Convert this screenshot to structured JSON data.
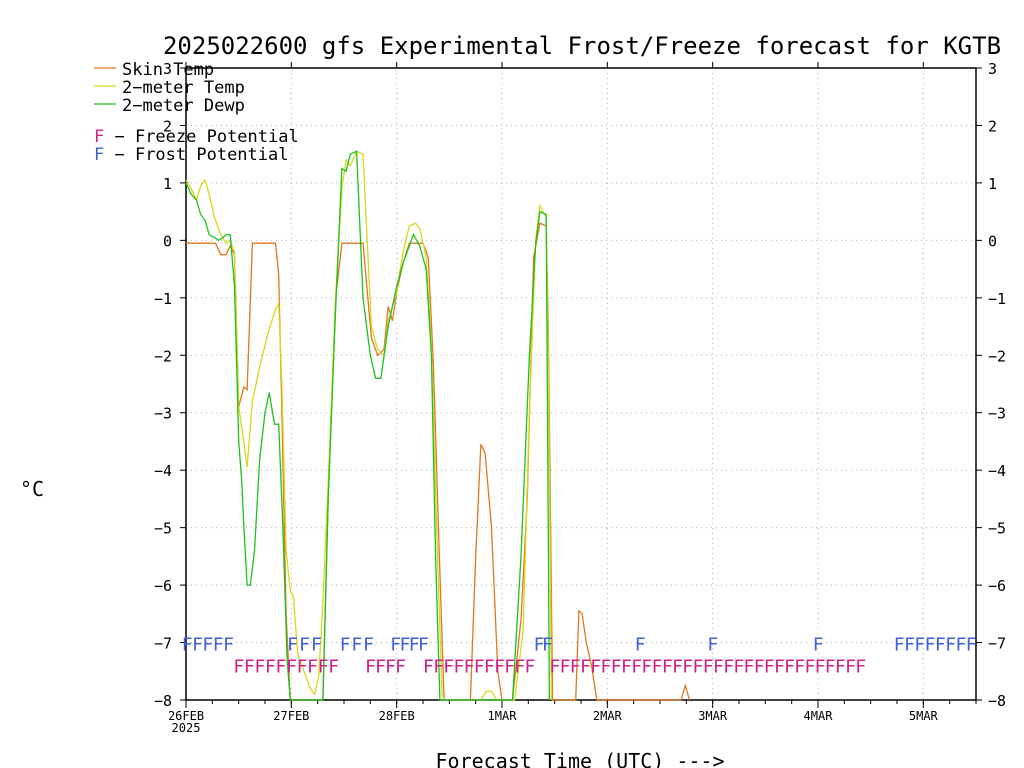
{
  "chart_data": {
    "type": "line",
    "title": "2025022600 gfs Experimental Frost/Freeze forecast for KGTB",
    "xlabel": "Forecast Time (UTC) --->",
    "ylabel": "°C",
    "ylim": [
      -8,
      3
    ],
    "yticks": [
      3,
      2,
      1,
      0,
      -1,
      -2,
      -3,
      -4,
      -5,
      -6,
      -7,
      -8
    ],
    "ytick_labels": [
      "3",
      "2",
      "1",
      "0",
      "−1",
      "−2",
      "−3",
      "−4",
      "−5",
      "−6",
      "−7",
      "−8"
    ],
    "xlim_days": [
      26,
      33.5
    ],
    "xtick_labels": [
      "26FEB",
      "27FEB",
      "28FEB",
      "1MAR",
      "2MAR",
      "3MAR",
      "4MAR",
      "5MAR"
    ],
    "x_year_label": "2025",
    "grid": true,
    "legend_position": "top-left",
    "legend": [
      {
        "label": "Skin Temp",
        "color": "#e07820"
      },
      {
        "label": "2−meter Temp",
        "color": "#d8d818"
      },
      {
        "label": "2−meter Dewp",
        "color": "#20c020"
      }
    ],
    "markers_legend": [
      {
        "label": "F − Freeze Potential",
        "letter": "F",
        "color": "#d0208a"
      },
      {
        "label": "F − Frost Potential",
        "letter": "F",
        "color": "#4060d8"
      }
    ],
    "series": [
      {
        "name": "Skin Temp",
        "color": "#e07820",
        "points": [
          [
            26.0,
            -0.05
          ],
          [
            26.1,
            -0.05
          ],
          [
            26.2,
            -0.05
          ],
          [
            26.28,
            -0.05
          ],
          [
            26.33,
            -0.25
          ],
          [
            26.38,
            -0.25
          ],
          [
            26.42,
            -0.1
          ],
          [
            26.46,
            -0.25
          ],
          [
            26.5,
            -2.9
          ],
          [
            26.55,
            -2.55
          ],
          [
            26.58,
            -2.6
          ],
          [
            26.63,
            -0.05
          ],
          [
            26.7,
            -0.05
          ],
          [
            26.8,
            -0.05
          ],
          [
            26.85,
            -0.05
          ],
          [
            26.88,
            -0.6
          ],
          [
            26.91,
            -3.0
          ],
          [
            26.95,
            -6.5
          ],
          [
            26.99,
            -8.0
          ],
          [
            27.3,
            -8.0
          ],
          [
            27.35,
            -4.5
          ],
          [
            27.42,
            -1.0
          ],
          [
            27.48,
            -0.05
          ],
          [
            27.55,
            -0.05
          ],
          [
            27.62,
            -0.05
          ],
          [
            27.68,
            -0.05
          ],
          [
            27.76,
            -1.7
          ],
          [
            27.82,
            -2.0
          ],
          [
            27.88,
            -1.9
          ],
          [
            27.92,
            -1.15
          ],
          [
            27.96,
            -1.4
          ],
          [
            28.0,
            -0.9
          ],
          [
            28.06,
            -0.4
          ],
          [
            28.12,
            -0.05
          ],
          [
            28.2,
            -0.05
          ],
          [
            28.25,
            -0.05
          ],
          [
            28.3,
            -0.3
          ],
          [
            28.35,
            -2.2
          ],
          [
            28.4,
            -5.2
          ],
          [
            28.45,
            -8.0
          ],
          [
            28.7,
            -8.0
          ],
          [
            28.75,
            -5.5
          ],
          [
            28.8,
            -3.55
          ],
          [
            28.84,
            -3.7
          ],
          [
            28.9,
            -5.0
          ],
          [
            28.96,
            -7.5
          ],
          [
            29.0,
            -8.0
          ],
          [
            29.1,
            -8.0
          ],
          [
            29.18,
            -6.6
          ],
          [
            29.24,
            -4.5
          ],
          [
            29.3,
            -0.3
          ],
          [
            29.36,
            0.3
          ],
          [
            29.42,
            0.25
          ],
          [
            29.44,
            -1.5
          ],
          [
            29.48,
            -8.0
          ],
          [
            29.7,
            -8.0
          ],
          [
            29.73,
            -6.45
          ],
          [
            29.76,
            -6.5
          ],
          [
            29.8,
            -7.0
          ],
          [
            29.85,
            -7.4
          ],
          [
            29.9,
            -8.0
          ],
          [
            30.7,
            -8.0
          ],
          [
            30.74,
            -7.75
          ],
          [
            30.78,
            -8.0
          ]
        ]
      },
      {
        "name": "2−meter Temp",
        "color": "#d8d818",
        "points": [
          [
            26.0,
            1.05
          ],
          [
            26.05,
            0.9
          ],
          [
            26.1,
            0.7
          ],
          [
            26.14,
            0.95
          ],
          [
            26.18,
            1.05
          ],
          [
            26.22,
            0.8
          ],
          [
            26.27,
            0.4
          ],
          [
            26.33,
            0.1
          ],
          [
            26.38,
            -0.05
          ],
          [
            26.42,
            0.0
          ],
          [
            26.46,
            -0.2
          ],
          [
            26.5,
            -2.9
          ],
          [
            26.55,
            -3.5
          ],
          [
            26.58,
            -3.95
          ],
          [
            26.63,
            -2.8
          ],
          [
            26.7,
            -2.2
          ],
          [
            26.78,
            -1.6
          ],
          [
            26.85,
            -1.2
          ],
          [
            26.88,
            -1.1
          ],
          [
            26.91,
            -2.5
          ],
          [
            26.95,
            -5.4
          ],
          [
            26.99,
            -6.1
          ],
          [
            27.02,
            -6.2
          ],
          [
            27.06,
            -7.2
          ],
          [
            27.12,
            -7.5
          ],
          [
            27.18,
            -7.8
          ],
          [
            27.22,
            -7.9
          ],
          [
            27.26,
            -7.6
          ],
          [
            27.3,
            -6.3
          ],
          [
            27.35,
            -4.2
          ],
          [
            27.42,
            -1.0
          ],
          [
            27.48,
            0.9
          ],
          [
            27.52,
            1.4
          ],
          [
            27.56,
            1.3
          ],
          [
            27.62,
            1.55
          ],
          [
            27.68,
            1.5
          ],
          [
            27.76,
            -1.5
          ],
          [
            27.82,
            -1.9
          ],
          [
            27.88,
            -2.0
          ],
          [
            27.92,
            -1.4
          ],
          [
            28.0,
            -0.9
          ],
          [
            28.06,
            -0.2
          ],
          [
            28.12,
            0.25
          ],
          [
            28.18,
            0.3
          ],
          [
            28.22,
            0.2
          ],
          [
            28.28,
            -0.3
          ],
          [
            28.33,
            -1.8
          ],
          [
            28.38,
            -5.0
          ],
          [
            28.43,
            -7.9
          ],
          [
            28.45,
            -8.0
          ],
          [
            28.8,
            -8.0
          ],
          [
            28.85,
            -7.85
          ],
          [
            28.9,
            -7.85
          ],
          [
            28.95,
            -8.0
          ],
          [
            29.12,
            -8.0
          ],
          [
            29.2,
            -6.8
          ],
          [
            29.26,
            -3.0
          ],
          [
            29.32,
            0.0
          ],
          [
            29.36,
            0.6
          ],
          [
            29.42,
            0.4
          ],
          [
            29.44,
            -2.0
          ],
          [
            29.47,
            -8.0
          ]
        ]
      },
      {
        "name": "2−meter Dewp",
        "color": "#20c020",
        "points": [
          [
            26.0,
            1.0
          ],
          [
            26.05,
            0.8
          ],
          [
            26.1,
            0.7
          ],
          [
            26.14,
            0.45
          ],
          [
            26.18,
            0.35
          ],
          [
            26.22,
            0.1
          ],
          [
            26.27,
            0.05
          ],
          [
            26.31,
            0.0
          ],
          [
            26.35,
            0.05
          ],
          [
            26.38,
            0.1
          ],
          [
            26.42,
            0.1
          ],
          [
            26.46,
            -0.8
          ],
          [
            26.5,
            -3.5
          ],
          [
            26.53,
            -4.2
          ],
          [
            26.55,
            -5.0
          ],
          [
            26.58,
            -6.0
          ],
          [
            26.61,
            -6.0
          ],
          [
            26.65,
            -5.4
          ],
          [
            26.7,
            -3.8
          ],
          [
            26.75,
            -3.0
          ],
          [
            26.79,
            -2.65
          ],
          [
            26.84,
            -3.2
          ],
          [
            26.88,
            -3.2
          ],
          [
            26.92,
            -5.0
          ],
          [
            26.96,
            -7.3
          ],
          [
            26.99,
            -8.0
          ],
          [
            27.3,
            -8.0
          ],
          [
            27.35,
            -4.5
          ],
          [
            27.42,
            -1.2
          ],
          [
            27.48,
            1.25
          ],
          [
            27.52,
            1.2
          ],
          [
            27.56,
            1.5
          ],
          [
            27.62,
            1.55
          ],
          [
            27.68,
            -1.0
          ],
          [
            27.75,
            -2.0
          ],
          [
            27.8,
            -2.4
          ],
          [
            27.85,
            -2.4
          ],
          [
            27.92,
            -1.5
          ],
          [
            28.0,
            -0.8
          ],
          [
            28.06,
            -0.4
          ],
          [
            28.12,
            -0.1
          ],
          [
            28.16,
            0.1
          ],
          [
            28.22,
            -0.1
          ],
          [
            28.28,
            -0.5
          ],
          [
            28.33,
            -2.0
          ],
          [
            28.37,
            -5.5
          ],
          [
            28.41,
            -8.0
          ],
          [
            29.1,
            -8.0
          ],
          [
            29.18,
            -5.5
          ],
          [
            29.26,
            -2.0
          ],
          [
            29.32,
            -0.05
          ],
          [
            29.36,
            0.5
          ],
          [
            29.42,
            0.45
          ],
          [
            29.45,
            -8.0
          ]
        ]
      }
    ],
    "frost_marks": [
      {
        "start": 25.96,
        "end": 26.45
      },
      {
        "start": 26.96,
        "end": 27.3
      },
      {
        "start": 27.46,
        "end": 27.79
      },
      {
        "start": 27.94,
        "end": 28.29
      },
      {
        "start": 29.3,
        "end": 29.46
      },
      {
        "start": 30.26,
        "end": 30.3
      },
      {
        "start": 30.95,
        "end": 31.01
      },
      {
        "start": 31.95,
        "end": 32.0
      },
      {
        "start": 32.72,
        "end": 33.5
      }
    ],
    "freeze_marks": [
      {
        "start": 26.45,
        "end": 27.45
      },
      {
        "start": 27.7,
        "end": 28.08
      },
      {
        "start": 28.25,
        "end": 29.31
      },
      {
        "start": 29.45,
        "end": 31.1
      },
      {
        "start": 31.1,
        "end": 32.45
      }
    ]
  }
}
